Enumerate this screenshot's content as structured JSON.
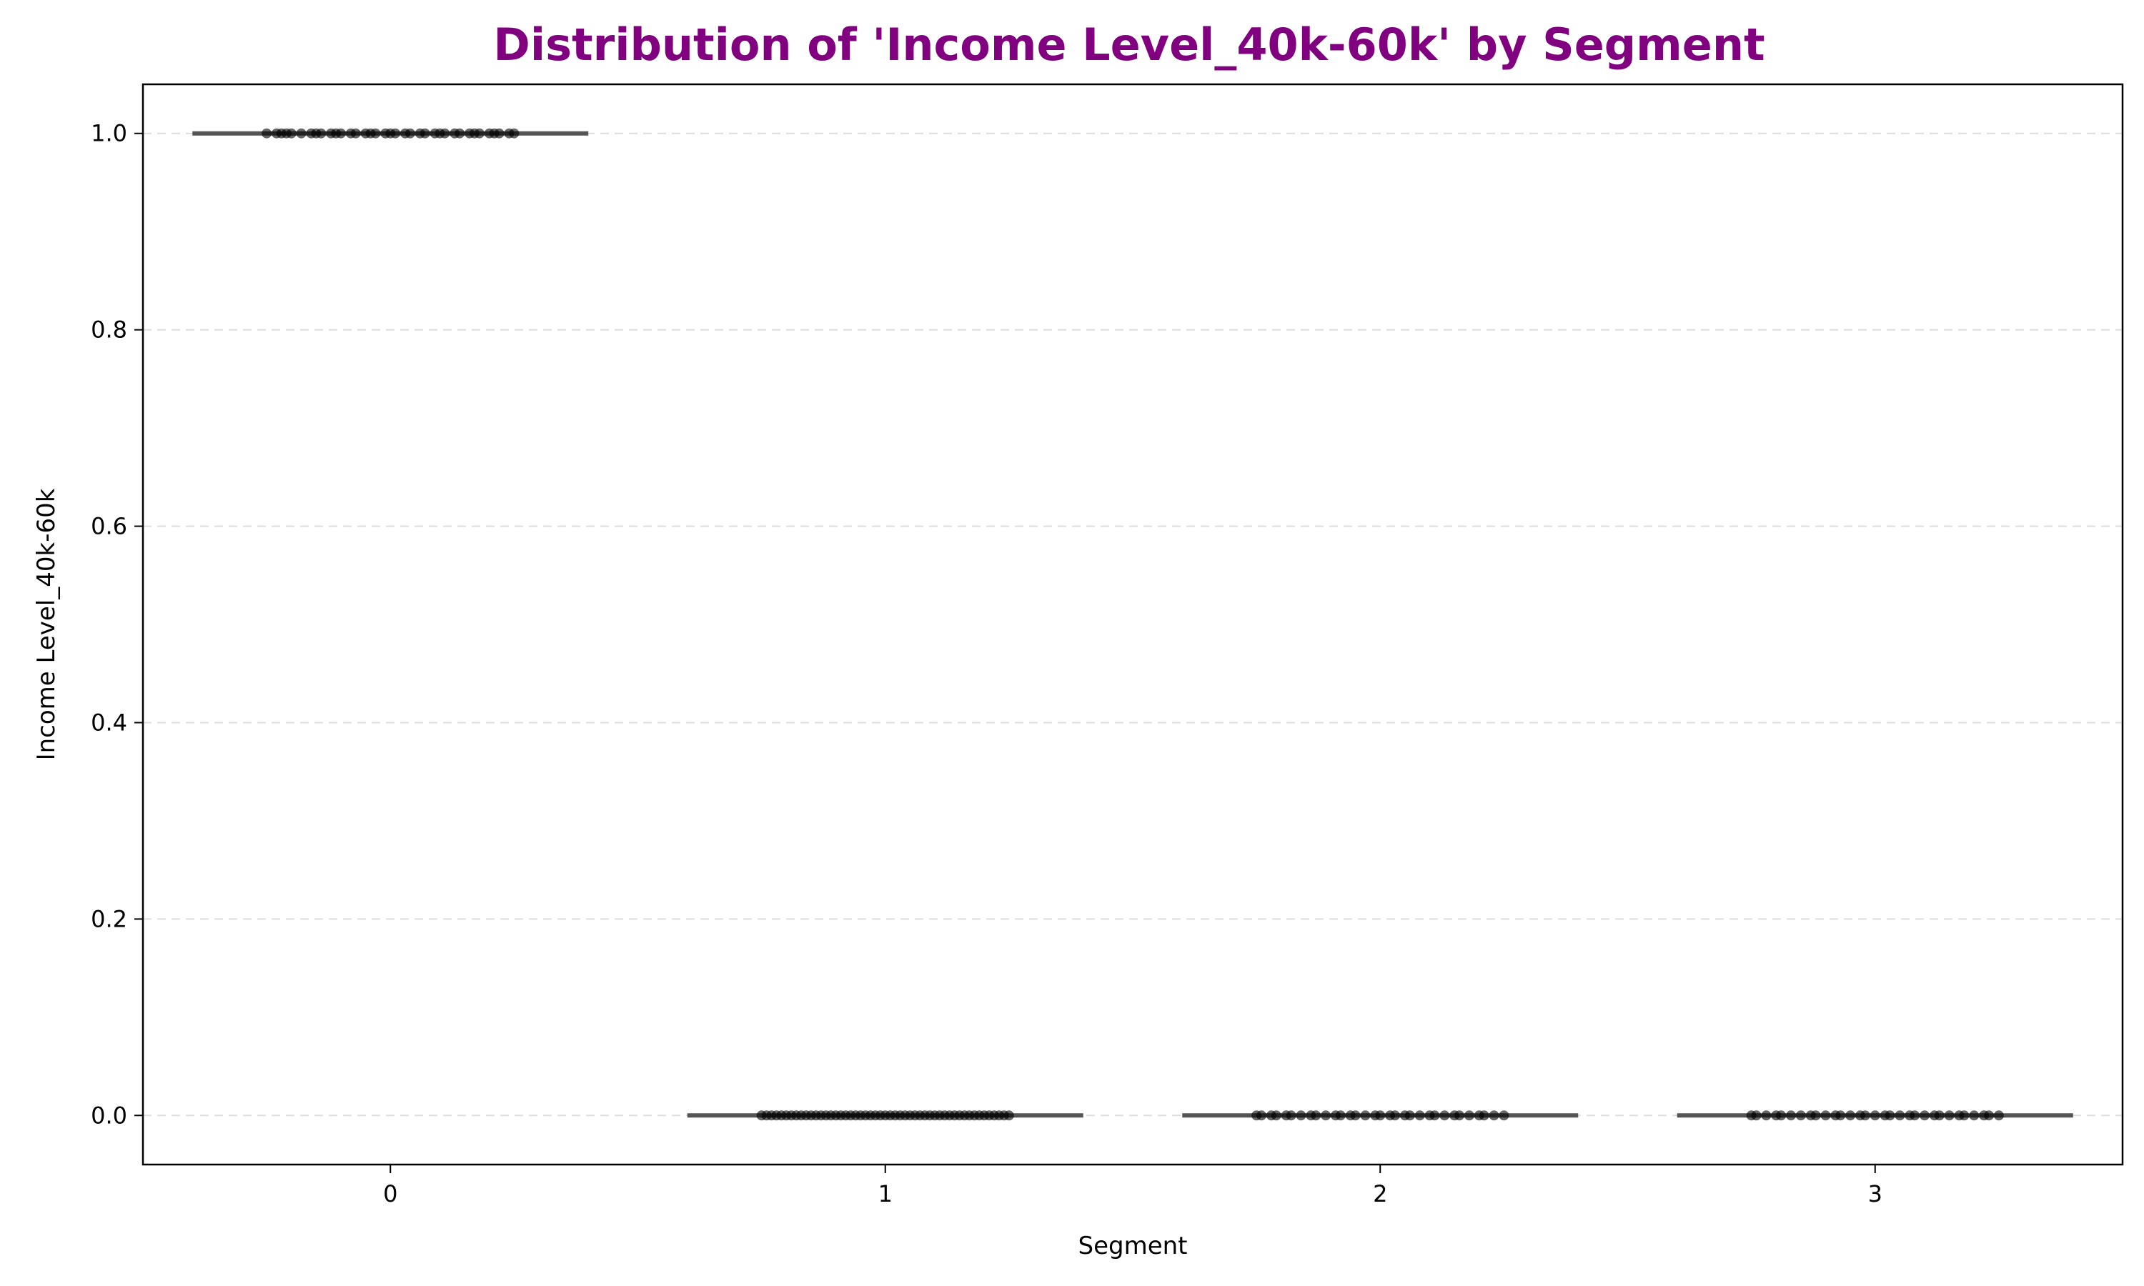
{
  "chart_data": {
    "type": "scatter",
    "subtype": "box-strip",
    "title": "Distribution of 'Income Level_40k-60k' by Segment",
    "xlabel": "Segment",
    "ylabel": "Income Level_40k-60k",
    "categories": [
      "0",
      "1",
      "2",
      "3"
    ],
    "ylim": [
      -0.05,
      1.05
    ],
    "yticks": [
      0.0,
      0.2,
      0.4,
      0.6,
      0.8,
      1.0
    ],
    "ytick_labels": [
      "0.0",
      "0.2",
      "0.4",
      "0.6",
      "0.8",
      "1.0"
    ],
    "grid": {
      "y": true,
      "style": "dashed"
    },
    "box_values": [
      1.0,
      0.0,
      0.0,
      0.0
    ],
    "points": [
      {
        "segment": 0,
        "value": 1.0,
        "offsets": [
          -0.25,
          -0.23,
          -0.22,
          -0.21,
          -0.2,
          -0.18,
          -0.16,
          -0.15,
          -0.14,
          -0.12,
          -0.11,
          -0.1,
          -0.08,
          -0.07,
          -0.05,
          -0.04,
          -0.03,
          -0.01,
          0.0,
          0.01,
          0.03,
          0.04,
          0.06,
          0.07,
          0.09,
          0.1,
          0.11,
          0.13,
          0.14,
          0.16,
          0.17,
          0.18,
          0.2,
          0.21,
          0.22,
          0.24,
          0.25
        ]
      },
      {
        "segment": 1,
        "value": 0.0,
        "offsets": [
          -0.25,
          -0.24,
          -0.23,
          -0.22,
          -0.21,
          -0.2,
          -0.19,
          -0.18,
          -0.17,
          -0.16,
          -0.15,
          -0.14,
          -0.13,
          -0.12,
          -0.11,
          -0.1,
          -0.09,
          -0.08,
          -0.07,
          -0.06,
          -0.05,
          -0.04,
          -0.03,
          -0.02,
          -0.01,
          0.0,
          0.01,
          0.02,
          0.03,
          0.04,
          0.05,
          0.06,
          0.07,
          0.08,
          0.09,
          0.1,
          0.11,
          0.12,
          0.13,
          0.14,
          0.15,
          0.16,
          0.17,
          0.18,
          0.19,
          0.2,
          0.21,
          0.22,
          0.23,
          0.24,
          0.25
        ]
      },
      {
        "segment": 2,
        "value": 0.0,
        "offsets": [
          -0.25,
          -0.24,
          -0.22,
          -0.21,
          -0.19,
          -0.18,
          -0.16,
          -0.14,
          -0.13,
          -0.11,
          -0.09,
          -0.08,
          -0.06,
          -0.05,
          -0.03,
          -0.01,
          0.0,
          0.02,
          0.03,
          0.05,
          0.06,
          0.08,
          0.1,
          0.11,
          0.13,
          0.15,
          0.16,
          0.18,
          0.2,
          0.21,
          0.23,
          0.25
        ]
      },
      {
        "segment": 3,
        "value": 0.0,
        "offsets": [
          -0.25,
          -0.24,
          -0.22,
          -0.2,
          -0.19,
          -0.17,
          -0.15,
          -0.13,
          -0.12,
          -0.1,
          -0.08,
          -0.07,
          -0.05,
          -0.03,
          -0.02,
          0.0,
          0.02,
          0.03,
          0.05,
          0.07,
          0.08,
          0.1,
          0.12,
          0.13,
          0.15,
          0.17,
          0.18,
          0.2,
          0.22,
          0.23,
          0.25
        ]
      }
    ],
    "colors": {
      "title": "#800080",
      "box_line": "#555555",
      "points": "#000000",
      "grid": "#dddddd",
      "axis": "#000000"
    }
  }
}
